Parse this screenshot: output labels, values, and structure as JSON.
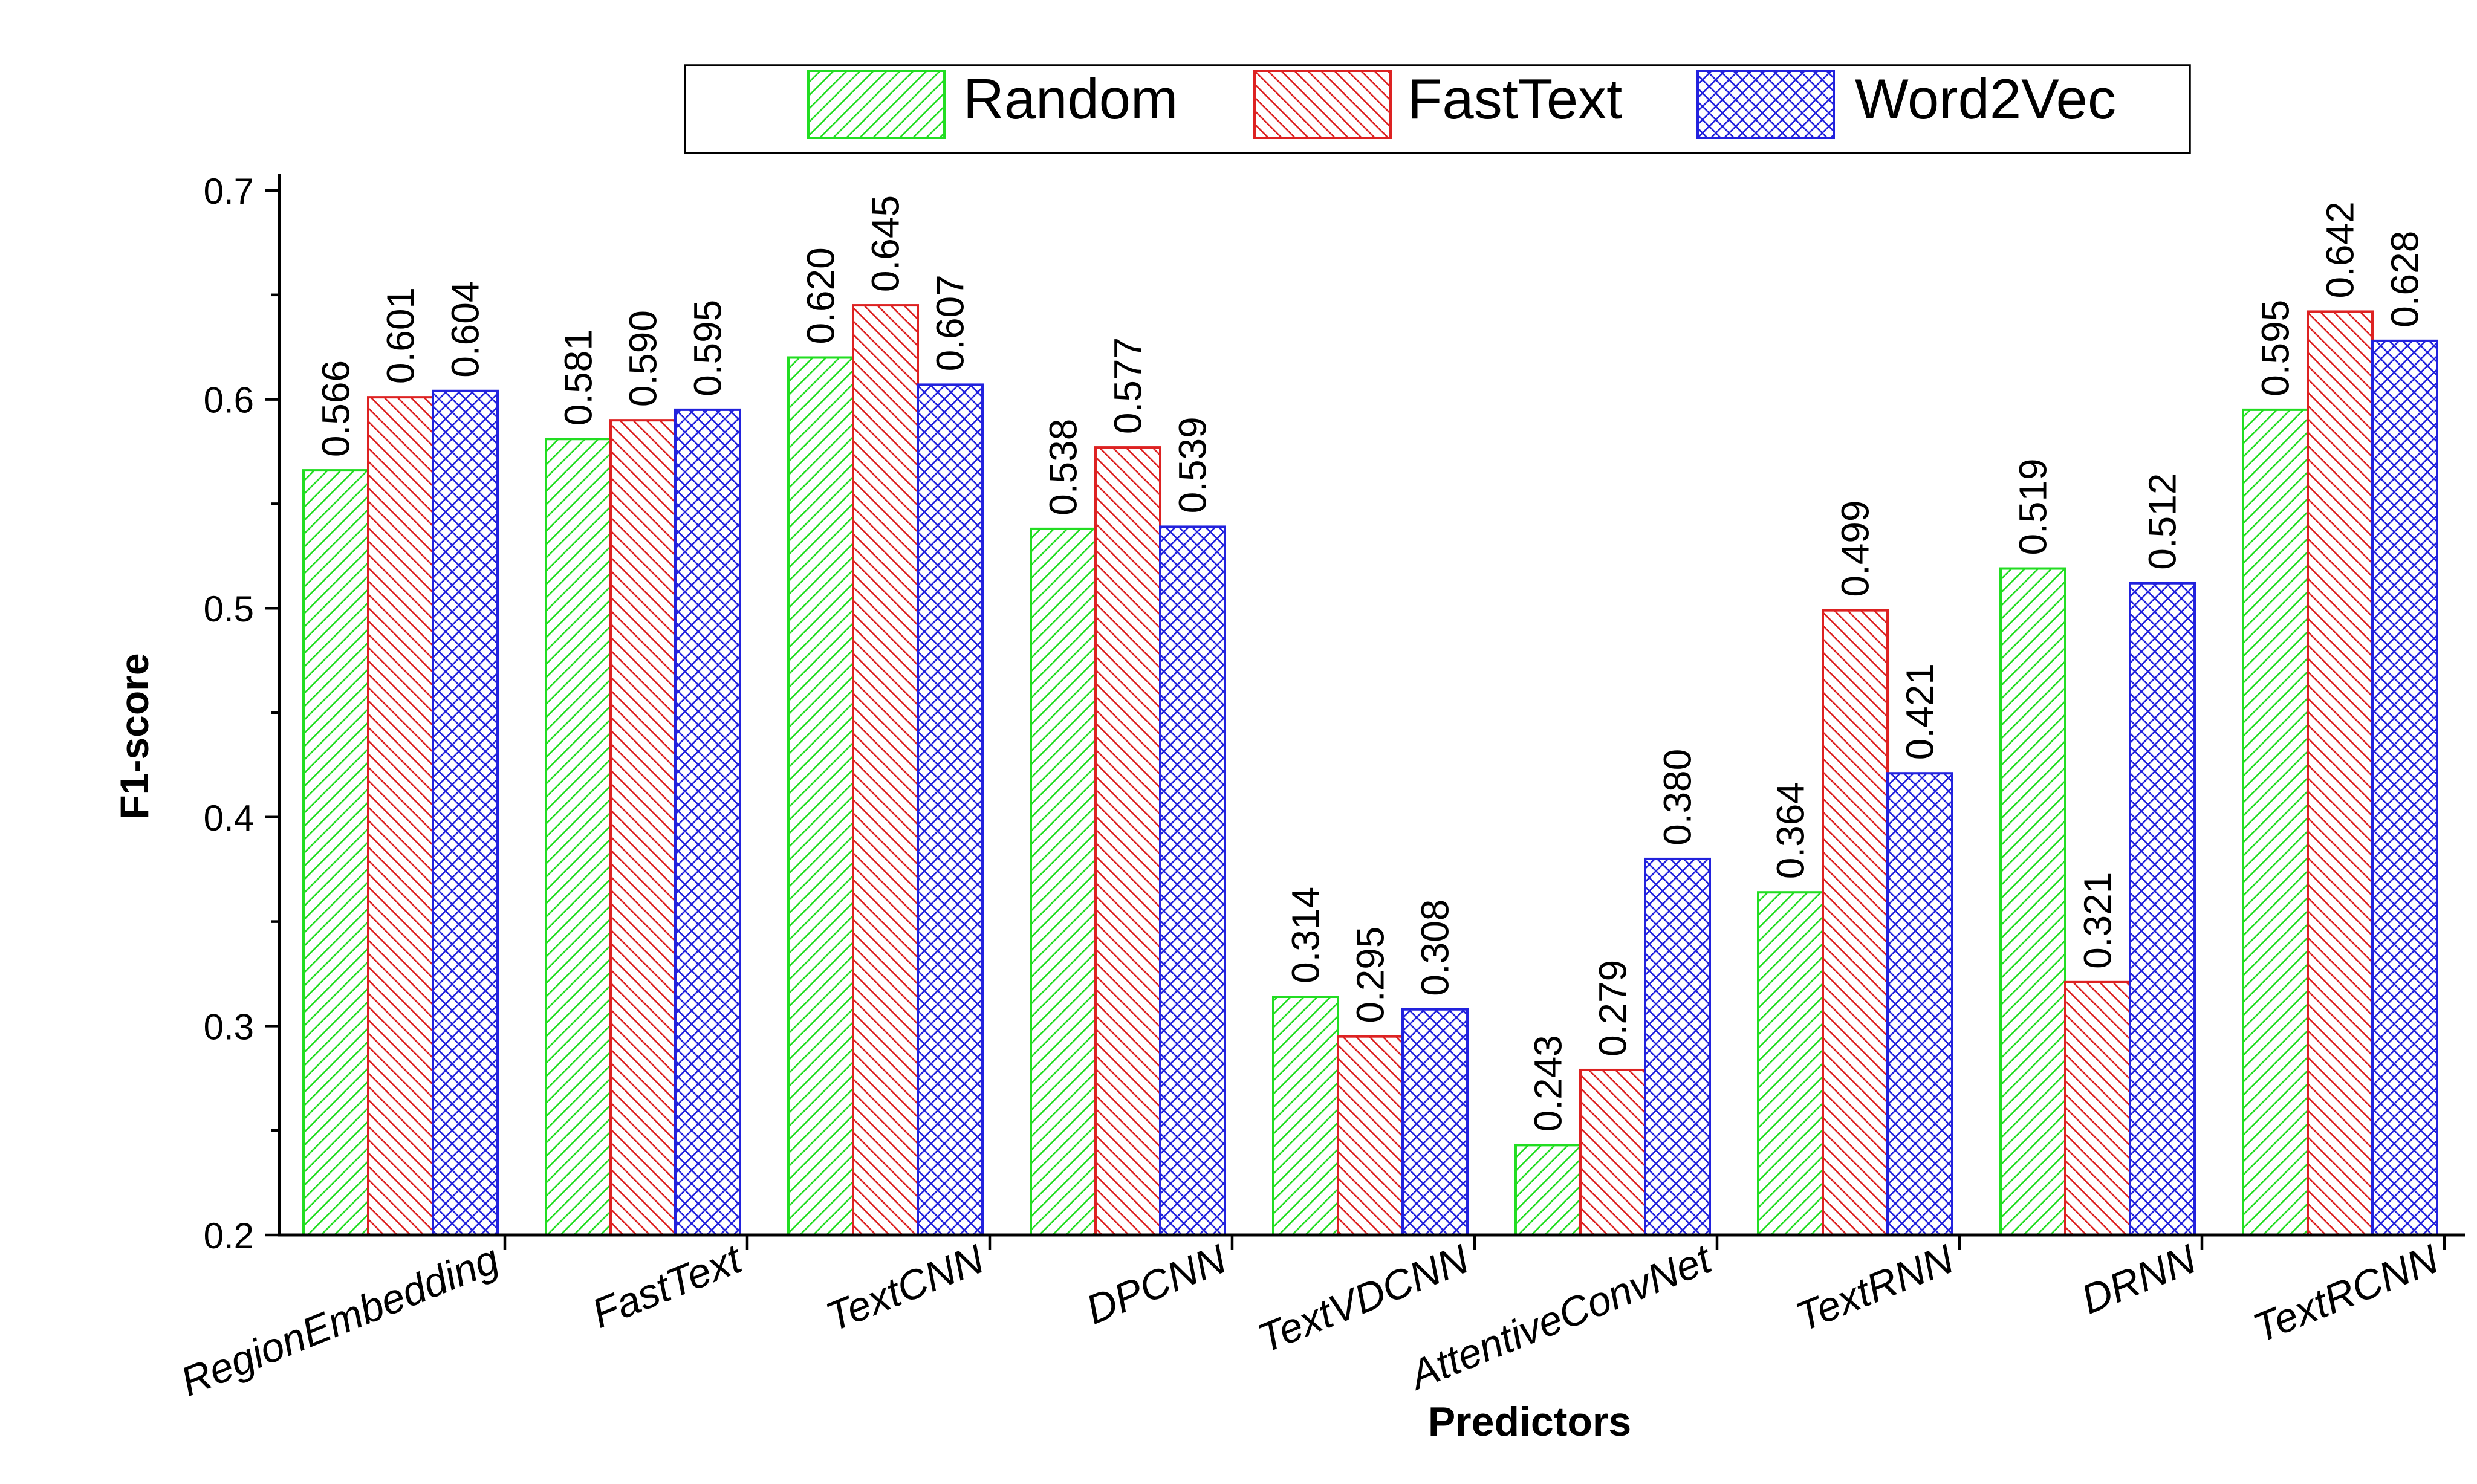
{
  "chart_data": {
    "type": "bar",
    "xlabel": "Predictors",
    "ylabel": "F1-score",
    "ylim": [
      0.2,
      0.7
    ],
    "yticks": [
      "0.2",
      "0.3",
      "0.4",
      "0.5",
      "0.6",
      "0.7"
    ],
    "grid": false,
    "legend_position": "top",
    "categories": [
      "RegionEmbedding",
      "FastText",
      "TextCNN",
      "DPCNN",
      "TextVDCNN",
      "AttentiveConvNet",
      "TextRNN",
      "DRNN",
      "TextRCNN"
    ],
    "series": [
      {
        "name": "Random",
        "color": "#22dd22",
        "pattern": "forward-diagonal-hatch",
        "values": [
          0.566,
          0.581,
          0.62,
          0.538,
          0.314,
          0.243,
          0.364,
          0.519,
          0.595
        ],
        "labels": [
          "0.566",
          "0.581",
          "0.620",
          "0.538",
          "0.314",
          "0.243",
          "0.364",
          "0.519",
          "0.595"
        ]
      },
      {
        "name": "FastText",
        "color": "#dd2222",
        "pattern": "backward-diagonal-hatch",
        "values": [
          0.601,
          0.59,
          0.645,
          0.577,
          0.295,
          0.279,
          0.499,
          0.321,
          0.642
        ],
        "labels": [
          "0.601",
          "0.590",
          "0.645",
          "0.577",
          "0.295",
          "0.279",
          "0.499",
          "0.321",
          "0.642"
        ]
      },
      {
        "name": "Word2Vec",
        "color": "#2222dd",
        "pattern": "crosshatch",
        "values": [
          0.604,
          0.595,
          0.607,
          0.539,
          0.308,
          0.38,
          0.421,
          0.512,
          0.628
        ],
        "labels": [
          "0.604",
          "0.595",
          "0.607",
          "0.539",
          "0.308",
          "0.380",
          "0.421",
          "0.512",
          "0.628"
        ]
      }
    ]
  }
}
